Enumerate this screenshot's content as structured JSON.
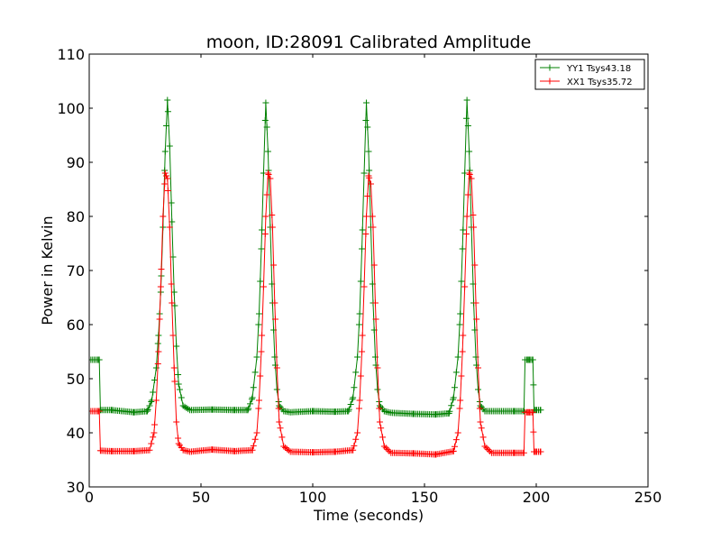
{
  "chart_data": {
    "type": "line",
    "title": "moon, ID:28091 Calibrated Amplitude",
    "xlabel": "Time (seconds)",
    "ylabel": "Power in Kelvin",
    "xlim": [
      0,
      250
    ],
    "ylim": [
      30,
      110
    ],
    "xticks": [
      0,
      50,
      100,
      150,
      200,
      250
    ],
    "yticks": [
      30,
      40,
      50,
      60,
      70,
      80,
      90,
      100,
      110
    ],
    "legend_position": "top-right",
    "marker": "+",
    "series": [
      {
        "name": "YY1 Tsys43.18",
        "color": "#008000",
        "x": [
          0,
          4,
          4.5,
          5,
          10,
          20,
          26,
          28,
          30,
          31,
          32,
          33,
          34,
          35,
          36,
          37,
          38,
          39,
          40,
          42,
          45,
          55,
          65,
          71,
          73,
          75,
          76,
          77,
          78,
          79,
          80,
          81,
          82,
          83,
          84,
          85,
          87,
          90,
          100,
          110,
          116,
          118,
          120,
          121,
          122,
          123,
          124,
          125,
          126,
          127,
          128,
          129,
          130,
          132,
          135,
          145,
          155,
          161,
          163,
          165,
          166,
          167,
          168,
          169,
          170,
          171,
          172,
          173,
          174,
          175,
          177,
          180,
          190,
          194.5,
          195,
          196,
          197,
          198,
          198.5,
          199,
          200,
          202
        ],
        "values": [
          53.5,
          53.5,
          53.5,
          44.2,
          44.2,
          43.8,
          44.0,
          46,
          52,
          58,
          66,
          78,
          92,
          101.5,
          93,
          79,
          66,
          56,
          49,
          45,
          44.2,
          44.3,
          44.2,
          44.2,
          46.5,
          54,
          62,
          74,
          88,
          101,
          92,
          78,
          64,
          54,
          48,
          45,
          44.0,
          43.8,
          44.0,
          43.9,
          44.0,
          46.5,
          54,
          62,
          74,
          88,
          101,
          92,
          78,
          64,
          54,
          48,
          45,
          44.0,
          43.7,
          43.5,
          43.4,
          43.6,
          46.5,
          54,
          62,
          74,
          88,
          101.5,
          92,
          78,
          64,
          54,
          48,
          45,
          44.0,
          44.0,
          44.0,
          44.0,
          53.5,
          53.5,
          53.5,
          53.5,
          53.5,
          44.2,
          44.2,
          44.2
        ]
      },
      {
        "name": "XX1 Tsys35.72",
        "color": "#ff0000",
        "x": [
          0,
          4,
          4.5,
          5,
          10,
          20,
          27,
          29,
          30,
          31,
          32,
          33,
          34,
          35,
          36,
          37,
          38,
          39,
          40,
          42,
          45,
          55,
          65,
          73,
          75,
          76,
          77,
          78,
          79,
          80,
          81,
          82,
          83,
          84,
          85,
          87,
          90,
          100,
          110,
          118,
          120,
          121,
          122,
          123,
          124,
          125,
          126,
          127,
          128,
          129,
          130,
          132,
          135,
          145,
          155,
          163,
          165,
          166,
          167,
          168,
          169,
          170,
          171,
          172,
          173,
          174,
          175,
          177,
          180,
          190,
          194.5,
          195,
          196,
          197,
          198,
          198.5,
          199,
          200,
          202
        ],
        "values": [
          44.0,
          44.0,
          44.0,
          36.7,
          36.6,
          36.6,
          36.8,
          40,
          46,
          55,
          67,
          80,
          88,
          87,
          78,
          64,
          52,
          42,
          38,
          36.8,
          36.5,
          36.9,
          36.6,
          36.8,
          40,
          46,
          55,
          67,
          80,
          88,
          87,
          78,
          64,
          52,
          42,
          37.5,
          36.5,
          36.4,
          36.5,
          36.8,
          40,
          46,
          55,
          67,
          80,
          87.5,
          86,
          78,
          64,
          52,
          42,
          37.5,
          36.3,
          36.2,
          36.0,
          36.6,
          40,
          46,
          55,
          67,
          80,
          88,
          87,
          78,
          64,
          52,
          42,
          37.5,
          36.3,
          36.3,
          36.3,
          43.8,
          43.8,
          43.8,
          43.8,
          43.8,
          36.5,
          36.5,
          36.5
        ]
      }
    ]
  }
}
